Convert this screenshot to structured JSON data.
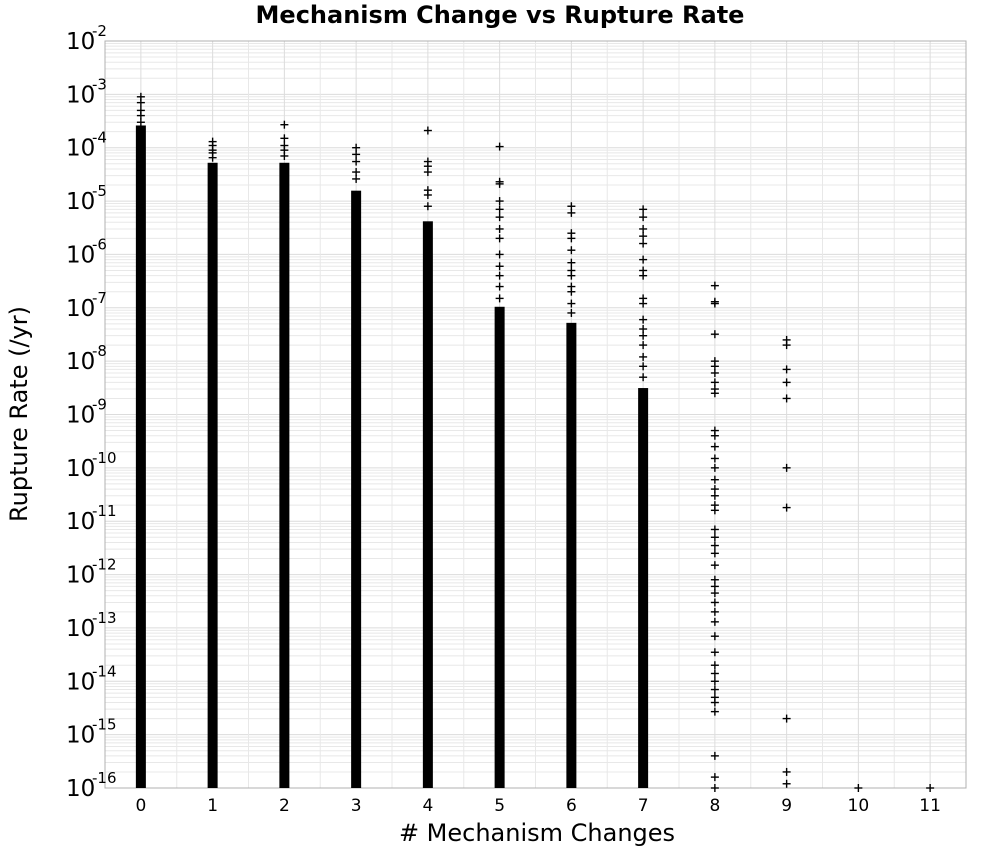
{
  "chart_data": {
    "type": "scatter",
    "title": "Mechanism Change vs Rupture Rate",
    "xlabel": "# Mechanism Changes",
    "ylabel": "Rupture Rate (/yr)",
    "xlim": [
      -0.5,
      11.5
    ],
    "ylim": [
      1e-16,
      0.01
    ],
    "yscale": "log",
    "grid": true,
    "marker": "+",
    "marker_color": "#000000",
    "x_ticks": [
      "0",
      "1",
      "2",
      "3",
      "4",
      "5",
      "6",
      "7",
      "8",
      "9",
      "10",
      "11"
    ],
    "y_ticks": [
      {
        "base": "10",
        "exp": "-2"
      },
      {
        "base": "10",
        "exp": "-3"
      },
      {
        "base": "10",
        "exp": "-4"
      },
      {
        "base": "10",
        "exp": "-5"
      },
      {
        "base": "10",
        "exp": "-6"
      },
      {
        "base": "10",
        "exp": "-7"
      },
      {
        "base": "10",
        "exp": "-8"
      },
      {
        "base": "10",
        "exp": "-9"
      },
      {
        "base": "10",
        "exp": "-10"
      },
      {
        "base": "10",
        "exp": "-11"
      },
      {
        "base": "10",
        "exp": "-12"
      },
      {
        "base": "10",
        "exp": "-13"
      },
      {
        "base": "10",
        "exp": "-14"
      },
      {
        "base": "10",
        "exp": "-15"
      },
      {
        "base": "10",
        "exp": "-16"
      }
    ],
    "dense_ranges": [
      {
        "x": 0,
        "y_min": 1e-16,
        "y_max": 0.00025
      },
      {
        "x": 1,
        "y_min": 1e-16,
        "y_max": 5e-05
      },
      {
        "x": 2,
        "y_min": 1e-16,
        "y_max": 5e-05
      },
      {
        "x": 3,
        "y_min": 1e-16,
        "y_max": 1.5e-05
      },
      {
        "x": 4,
        "y_min": 1e-16,
        "y_max": 4e-06
      },
      {
        "x": 5,
        "y_min": 1e-16,
        "y_max": 1e-07
      },
      {
        "x": 6,
        "y_min": 1e-16,
        "y_max": 5e-08
      },
      {
        "x": 7,
        "y_min": 1e-16,
        "y_max": 3e-09
      }
    ],
    "points": [
      {
        "x": 0,
        "y": 0.0009
      },
      {
        "x": 0,
        "y": 0.0007
      },
      {
        "x": 0,
        "y": 0.0005
      },
      {
        "x": 0,
        "y": 0.0004
      },
      {
        "x": 0,
        "y": 0.0003
      },
      {
        "x": 1,
        "y": 0.00013
      },
      {
        "x": 1,
        "y": 0.00011
      },
      {
        "x": 1,
        "y": 9e-05
      },
      {
        "x": 1,
        "y": 8e-05
      },
      {
        "x": 1,
        "y": 6.5e-05
      },
      {
        "x": 2,
        "y": 0.00027
      },
      {
        "x": 2,
        "y": 0.00015
      },
      {
        "x": 2,
        "y": 0.00011
      },
      {
        "x": 2,
        "y": 9e-05
      },
      {
        "x": 2,
        "y": 7e-05
      },
      {
        "x": 3,
        "y": 0.0001
      },
      {
        "x": 3,
        "y": 7.5e-05
      },
      {
        "x": 3,
        "y": 5.5e-05
      },
      {
        "x": 3,
        "y": 3.5e-05
      },
      {
        "x": 3,
        "y": 2.6e-05
      },
      {
        "x": 4,
        "y": 0.00021
      },
      {
        "x": 4,
        "y": 5.5e-05
      },
      {
        "x": 4,
        "y": 4.5e-05
      },
      {
        "x": 4,
        "y": 3.5e-05
      },
      {
        "x": 4,
        "y": 1.6e-05
      },
      {
        "x": 4,
        "y": 1.3e-05
      },
      {
        "x": 4,
        "y": 8e-06
      },
      {
        "x": 5,
        "y": 0.000105
      },
      {
        "x": 5,
        "y": 2.3e-05
      },
      {
        "x": 5,
        "y": 2.1e-05
      },
      {
        "x": 5,
        "y": 1e-05
      },
      {
        "x": 5,
        "y": 7e-06
      },
      {
        "x": 5,
        "y": 5e-06
      },
      {
        "x": 5,
        "y": 3e-06
      },
      {
        "x": 5,
        "y": 2e-06
      },
      {
        "x": 5,
        "y": 1e-06
      },
      {
        "x": 5,
        "y": 6e-07
      },
      {
        "x": 5,
        "y": 4e-07
      },
      {
        "x": 5,
        "y": 2.5e-07
      },
      {
        "x": 5,
        "y": 1.5e-07
      },
      {
        "x": 6,
        "y": 8e-06
      },
      {
        "x": 6,
        "y": 6e-06
      },
      {
        "x": 6,
        "y": 2.5e-06
      },
      {
        "x": 6,
        "y": 2e-06
      },
      {
        "x": 6,
        "y": 1.2e-06
      },
      {
        "x": 6,
        "y": 7e-07
      },
      {
        "x": 6,
        "y": 5e-07
      },
      {
        "x": 6,
        "y": 4e-07
      },
      {
        "x": 6,
        "y": 2.5e-07
      },
      {
        "x": 6,
        "y": 2e-07
      },
      {
        "x": 6,
        "y": 1.2e-07
      },
      {
        "x": 6,
        "y": 8e-08
      },
      {
        "x": 7,
        "y": 7e-06
      },
      {
        "x": 7,
        "y": 5e-06
      },
      {
        "x": 7,
        "y": 3e-06
      },
      {
        "x": 7,
        "y": 2.2e-06
      },
      {
        "x": 7,
        "y": 1.6e-06
      },
      {
        "x": 7,
        "y": 8e-07
      },
      {
        "x": 7,
        "y": 5e-07
      },
      {
        "x": 7,
        "y": 4e-07
      },
      {
        "x": 7,
        "y": 1.5e-07
      },
      {
        "x": 7,
        "y": 1.2e-07
      },
      {
        "x": 7,
        "y": 6e-08
      },
      {
        "x": 7,
        "y": 4e-08
      },
      {
        "x": 7,
        "y": 3e-08
      },
      {
        "x": 7,
        "y": 2e-08
      },
      {
        "x": 7,
        "y": 1.2e-08
      },
      {
        "x": 7,
        "y": 8e-09
      },
      {
        "x": 7,
        "y": 5e-09
      },
      {
        "x": 8,
        "y": 2.6e-07
      },
      {
        "x": 8,
        "y": 1.3e-07
      },
      {
        "x": 8,
        "y": 1.2e-07
      },
      {
        "x": 8,
        "y": 3.2e-08
      },
      {
        "x": 8,
        "y": 1e-08
      },
      {
        "x": 8,
        "y": 8e-09
      },
      {
        "x": 8,
        "y": 6e-09
      },
      {
        "x": 8,
        "y": 4e-09
      },
      {
        "x": 8,
        "y": 3e-09
      },
      {
        "x": 8,
        "y": 2.5e-09
      },
      {
        "x": 8,
        "y": 5e-10
      },
      {
        "x": 8,
        "y": 4e-10
      },
      {
        "x": 8,
        "y": 2.5e-10
      },
      {
        "x": 8,
        "y": 1.5e-10
      },
      {
        "x": 8,
        "y": 1e-10
      },
      {
        "x": 8,
        "y": 6e-11
      },
      {
        "x": 8,
        "y": 4e-11
      },
      {
        "x": 8,
        "y": 3e-11
      },
      {
        "x": 8,
        "y": 2e-11
      },
      {
        "x": 8,
        "y": 1.6e-11
      },
      {
        "x": 8,
        "y": 7e-12
      },
      {
        "x": 8,
        "y": 5e-12
      },
      {
        "x": 8,
        "y": 3.5e-12
      },
      {
        "x": 8,
        "y": 2.5e-12
      },
      {
        "x": 8,
        "y": 1.5e-12
      },
      {
        "x": 8,
        "y": 8e-13
      },
      {
        "x": 8,
        "y": 6e-13
      },
      {
        "x": 8,
        "y": 4.5e-13
      },
      {
        "x": 8,
        "y": 3e-13
      },
      {
        "x": 8,
        "y": 2e-13
      },
      {
        "x": 8,
        "y": 1.3e-13
      },
      {
        "x": 8,
        "y": 7e-14
      },
      {
        "x": 8,
        "y": 3.5e-14
      },
      {
        "x": 8,
        "y": 2e-14
      },
      {
        "x": 8,
        "y": 1.4e-14
      },
      {
        "x": 8,
        "y": 1e-14
      },
      {
        "x": 8,
        "y": 7e-15
      },
      {
        "x": 8,
        "y": 5e-15
      },
      {
        "x": 8,
        "y": 4e-15
      },
      {
        "x": 8,
        "y": 2.7e-15
      },
      {
        "x": 8,
        "y": 4e-16
      },
      {
        "x": 8,
        "y": 1.6e-16
      },
      {
        "x": 8,
        "y": 1e-16
      },
      {
        "x": 9,
        "y": 2.5e-08
      },
      {
        "x": 9,
        "y": 2e-08
      },
      {
        "x": 9,
        "y": 7e-09
      },
      {
        "x": 9,
        "y": 4e-09
      },
      {
        "x": 9,
        "y": 2e-09
      },
      {
        "x": 9,
        "y": 1e-10
      },
      {
        "x": 9,
        "y": 1.8e-11
      },
      {
        "x": 9,
        "y": 2e-15
      },
      {
        "x": 9,
        "y": 2e-16
      },
      {
        "x": 9,
        "y": 1.2e-16
      },
      {
        "x": 10,
        "y": 1e-16
      },
      {
        "x": 11,
        "y": 1e-16
      }
    ]
  }
}
